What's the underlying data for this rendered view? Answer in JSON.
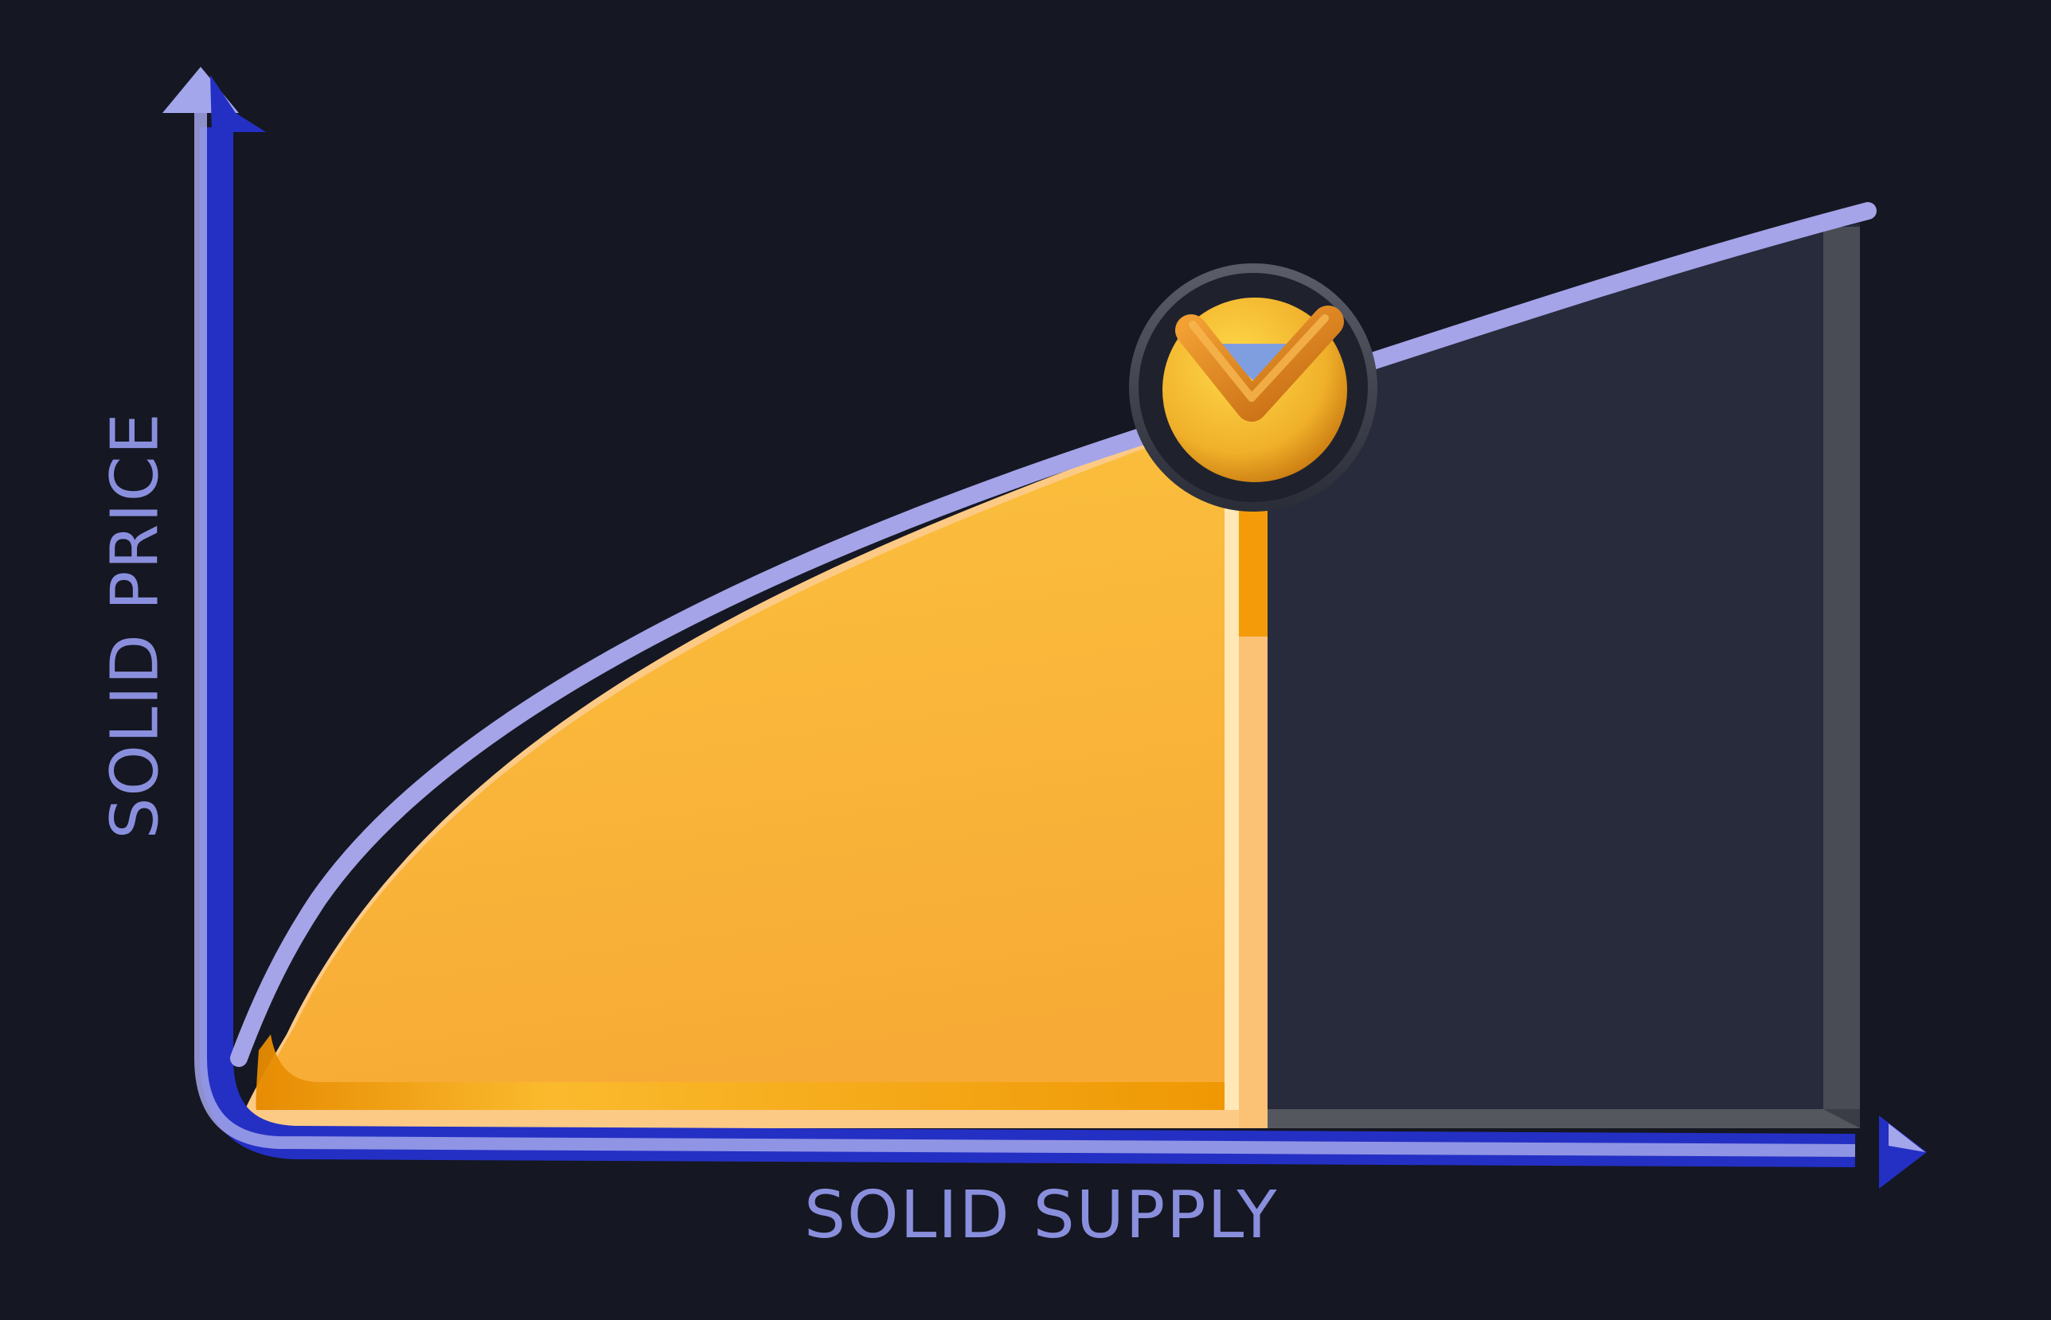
{
  "diagram": {
    "xlabel": "SOLID SUPPLY",
    "ylabel": "SOLID PRICE",
    "curve": "concave increasing (bonding curve)",
    "marker_icon": "checkmark-coin-icon",
    "regions": [
      "filled-area-under-curve",
      "remaining-area-under-curve"
    ],
    "colors": {
      "background": "#151722",
      "axis": "#2430c4",
      "axis_highlight": "#a3a6ea",
      "curve": "#a5a4e8",
      "filled_area": "#f9b43a",
      "remaining_area": "#282b3c",
      "coin": "#f2b52c"
    }
  }
}
